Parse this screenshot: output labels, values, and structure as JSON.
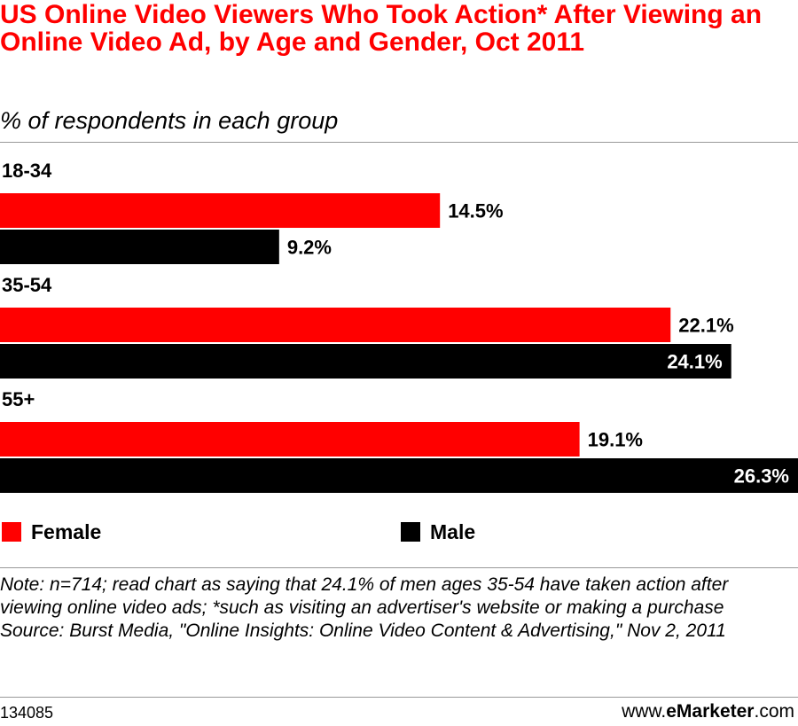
{
  "header": {
    "title": "US Online Video Viewers Who Took Action* After Viewing an Online Video Ad, by Age and Gender, Oct 2011",
    "subtitle": "% of respondents in each group"
  },
  "chart_data": {
    "type": "bar",
    "orientation": "horizontal",
    "categories": [
      "18-34",
      "35-54",
      "55+"
    ],
    "series": [
      {
        "name": "Female",
        "color": "#ff0000",
        "values": [
          14.5,
          22.1,
          19.1
        ]
      },
      {
        "name": "Male",
        "color": "#000000",
        "values": [
          9.2,
          24.1,
          26.3
        ]
      }
    ],
    "value_format": "{v}%",
    "xlim": [
      0,
      26.3
    ],
    "grid": false,
    "legend_position": "bottom"
  },
  "legend": {
    "female_label": "Female",
    "male_label": "Male"
  },
  "notes": {
    "note": "Note: n=714; read chart as saying that 24.1% of men ages 35-54 have taken action after viewing online video ads; *such as visiting an advertiser's website or making a purchase",
    "source": "Source: Burst Media, \"Online Insights: Online Video Content & Advertising,\" Nov 2, 2011"
  },
  "footer": {
    "chart_id": "134085",
    "brand_prefix": "www.",
    "brand_name": "eMarketer",
    "brand_suffix": ".com"
  },
  "colors": {
    "title": "#ff0000",
    "female": "#ff0000",
    "male": "#000000",
    "rule": "#999999"
  }
}
